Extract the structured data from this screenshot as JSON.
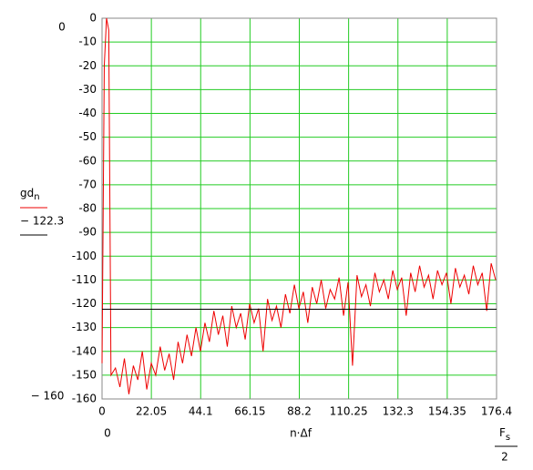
{
  "chart_data": {
    "type": "line",
    "y_label": {
      "name": "gd",
      "subscript": "n"
    },
    "threshold": {
      "label": "− 122.3",
      "value": -122.3,
      "color": "#000000"
    },
    "ylim_labels": [
      "− 160",
      "0"
    ],
    "x_label": "n·Δf",
    "xlim_labels": [
      "0"
    ],
    "x_end_label": {
      "name": "F",
      "subscript": "s",
      "denominator": "2"
    },
    "xlim": [
      0,
      176.4
    ],
    "ylim": [
      -160,
      0
    ],
    "xticks": [
      0,
      22.05,
      44.1,
      66.15,
      88.2,
      110.25,
      132.3,
      154.35,
      176.4
    ],
    "yticks": [
      0,
      -10,
      -20,
      -30,
      -40,
      -50,
      -60,
      -70,
      -80,
      -90,
      -100,
      -110,
      -120,
      -130,
      -140,
      -150,
      -160
    ],
    "grid": true,
    "grid_color": "#22cc22",
    "x": [
      0,
      1,
      2,
      3,
      4,
      6,
      8,
      10,
      12,
      14,
      16,
      18,
      20,
      22,
      24,
      26,
      28,
      30,
      32,
      34,
      36,
      38,
      40,
      42,
      44,
      46,
      48,
      50,
      52,
      54,
      56,
      58,
      60,
      62,
      64,
      66,
      68,
      70,
      72,
      74,
      76,
      78,
      80,
      82,
      84,
      86,
      88,
      90,
      92,
      94,
      96,
      98,
      100,
      102,
      104,
      106,
      108,
      110,
      112,
      114,
      116,
      118,
      120,
      122,
      124,
      126,
      128,
      130,
      132,
      134,
      136,
      138,
      140,
      142,
      144,
      146,
      148,
      150,
      152,
      154,
      156,
      158,
      160,
      162,
      164,
      166,
      168,
      170,
      172,
      174,
      176
    ],
    "series": [
      {
        "name": "gd",
        "color": "#ee0000",
        "values": [
          -145,
          -20,
          0,
          -5,
          -150,
          -147,
          -155,
          -143,
          -158,
          -146,
          -152,
          -140,
          -156,
          -145,
          -150,
          -138,
          -148,
          -141,
          -152,
          -136,
          -145,
          -133,
          -142,
          -130,
          -140,
          -128,
          -136,
          -123,
          -133,
          -125,
          -138,
          -121,
          -130,
          -124,
          -135,
          -120,
          -128,
          -122,
          -140,
          -118,
          -127,
          -121,
          -130,
          -116,
          -124,
          -112,
          -122,
          -115,
          -128,
          -113,
          -120,
          -110,
          -122,
          -114,
          -118,
          -109,
          -125,
          -111,
          -146,
          -108,
          -117,
          -112,
          -121,
          -107,
          -115,
          -110,
          -118,
          -106,
          -114,
          -109,
          -125,
          -107,
          -115,
          -104,
          -113,
          -108,
          -118,
          -106,
          -112,
          -107,
          -120,
          -105,
          -113,
          -108,
          -116,
          -104,
          -112,
          -107,
          -123,
          -103,
          -110
        ]
      }
    ]
  }
}
